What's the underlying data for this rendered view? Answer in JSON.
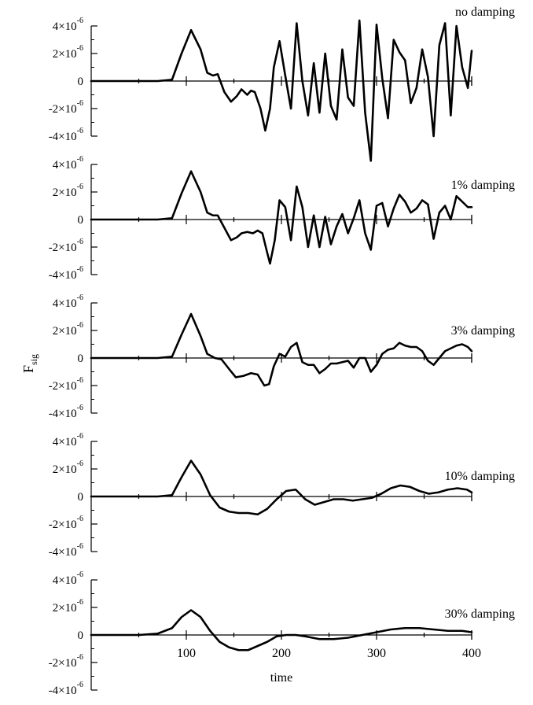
{
  "chart_data": {
    "type": "line",
    "xlabel": "time",
    "ylabel": "F",
    "ylabel_subscript": "sig",
    "xlim": [
      0,
      400
    ],
    "ylim": [
      -4e-06,
      4e-06
    ],
    "x_ticks": [
      "100",
      "200",
      "300",
      "400"
    ],
    "y_ticks": [
      {
        "mantissa": "4×10",
        "exponent": "-6"
      },
      {
        "mantissa": "2×10",
        "exponent": "-6"
      },
      {
        "mantissa": "0",
        "exponent": ""
      },
      {
        "mantissa": "-2×10",
        "exponent": "-6"
      },
      {
        "mantissa": "-4×10",
        "exponent": "-6"
      }
    ],
    "y_tick_values": [
      4e-06,
      2e-06,
      0,
      -2e-06,
      -4e-06
    ],
    "series": [
      {
        "name": "no damping",
        "x": [
          0,
          70,
          85,
          95,
          105,
          115,
          122,
          128,
          133,
          140,
          147,
          153,
          158,
          164,
          168,
          172,
          178,
          183,
          188,
          192,
          198,
          204,
          210,
          216,
          222,
          228,
          234,
          240,
          246,
          252,
          258,
          264,
          270,
          276,
          282,
          288,
          294,
          300,
          306,
          312,
          318,
          324,
          330,
          336,
          342,
          348,
          354,
          360,
          366,
          372,
          378,
          384,
          390,
          396,
          400
        ],
        "y": [
          0,
          0,
          1e-07,
          2e-06,
          3.7e-06,
          2.3e-06,
          6e-07,
          4e-07,
          5e-07,
          -8e-07,
          -1.5e-06,
          -1.1e-06,
          -6e-07,
          -1e-06,
          -7e-07,
          -8e-07,
          -2e-06,
          -3.6e-06,
          -2e-06,
          1e-06,
          2.9e-06,
          4e-07,
          -2e-06,
          4.2e-06,
          0,
          -2.5e-06,
          1.3e-06,
          -2.3e-06,
          2e-06,
          -1.8e-06,
          -2.8e-06,
          2.3e-06,
          -1.2e-06,
          -1.8e-06,
          4.4e-06,
          -2.3e-06,
          -5.8e-06,
          4.1e-06,
          2e-07,
          -2.7e-06,
          3e-06,
          2.1e-06,
          1.5e-06,
          -1.6e-06,
          -5e-07,
          2.3e-06,
          3e-07,
          -4e-06,
          2.6e-06,
          4.2e-06,
          -2.5e-06,
          4e-06,
          1e-06,
          -5e-07,
          2.2e-06
        ]
      },
      {
        "name": "1% damping",
        "x": [
          0,
          70,
          85,
          95,
          105,
          115,
          122,
          128,
          133,
          140,
          147,
          153,
          158,
          164,
          170,
          175,
          180,
          185,
          188,
          193,
          198,
          204,
          210,
          216,
          222,
          228,
          234,
          240,
          246,
          252,
          258,
          264,
          270,
          276,
          282,
          288,
          294,
          300,
          306,
          312,
          318,
          324,
          330,
          336,
          342,
          348,
          354,
          360,
          366,
          372,
          378,
          384,
          390,
          396,
          400
        ],
        "y": [
          0,
          0,
          1e-07,
          1.9e-06,
          3.5e-06,
          2e-06,
          5e-07,
          3e-07,
          3e-07,
          -6e-07,
          -1.5e-06,
          -1.3e-06,
          -1e-06,
          -9e-07,
          -1e-06,
          -8e-07,
          -1e-06,
          -2.4e-06,
          -3.2e-06,
          -1.5e-06,
          1.4e-06,
          9e-07,
          -1.5e-06,
          2.4e-06,
          9e-07,
          -2e-06,
          3e-07,
          -2e-06,
          2e-07,
          -1.8e-06,
          -5e-07,
          4e-07,
          -1e-06,
          1e-07,
          1.4e-06,
          -1e-06,
          -2.2e-06,
          1e-06,
          1.2e-06,
          -5e-07,
          8e-07,
          1.8e-06,
          1.3e-06,
          5e-07,
          8e-07,
          1.4e-06,
          1.1e-06,
          -1.4e-06,
          5e-07,
          1e-06,
          0,
          1.7e-06,
          1.3e-06,
          9e-07,
          9e-07
        ]
      },
      {
        "name": "3% damping",
        "x": [
          0,
          70,
          85,
          95,
          105,
          115,
          122,
          130,
          137,
          145,
          152,
          160,
          168,
          175,
          182,
          187,
          192,
          198,
          204,
          210,
          216,
          222,
          228,
          234,
          240,
          246,
          252,
          258,
          264,
          270,
          276,
          282,
          288,
          294,
          300,
          306,
          312,
          318,
          324,
          330,
          336,
          342,
          348,
          354,
          360,
          366,
          372,
          378,
          384,
          390,
          396,
          400
        ],
        "y": [
          0,
          0,
          1e-07,
          1.7e-06,
          3.2e-06,
          1.6e-06,
          3e-07,
          0,
          -1e-07,
          -8e-07,
          -1.4e-06,
          -1.3e-06,
          -1.1e-06,
          -1.2e-06,
          -2e-06,
          -1.9e-06,
          -6e-07,
          3e-07,
          1e-07,
          8e-07,
          1.1e-06,
          -3e-07,
          -5e-07,
          -5e-07,
          -1.1e-06,
          -8e-07,
          -4e-07,
          -4e-07,
          -3e-07,
          -2e-07,
          -7e-07,
          0,
          0,
          -1e-06,
          -5e-07,
          3e-07,
          6e-07,
          7e-07,
          1.1e-06,
          9e-07,
          8e-07,
          8e-07,
          5e-07,
          -2e-07,
          -5e-07,
          0,
          5e-07,
          7e-07,
          9e-07,
          1e-06,
          8e-07,
          5e-07
        ]
      },
      {
        "name": "10% damping",
        "x": [
          0,
          70,
          85,
          95,
          105,
          115,
          125,
          135,
          145,
          155,
          165,
          175,
          185,
          195,
          205,
          215,
          225,
          235,
          245,
          255,
          265,
          275,
          285,
          295,
          305,
          315,
          325,
          335,
          345,
          355,
          365,
          375,
          385,
          395,
          400
        ],
        "y": [
          0,
          0,
          1e-07,
          1.4e-06,
          2.6e-06,
          1.6e-06,
          1e-07,
          -8e-07,
          -1.1e-06,
          -1.2e-06,
          -1.2e-06,
          -1.3e-06,
          -9e-07,
          -2e-07,
          4e-07,
          5e-07,
          -2e-07,
          -6e-07,
          -4e-07,
          -2e-07,
          -2e-07,
          -3e-07,
          -2e-07,
          -1e-07,
          2e-07,
          6e-07,
          8e-07,
          7e-07,
          4e-07,
          2e-07,
          3e-07,
          5e-07,
          6e-07,
          5e-07,
          3e-07
        ]
      },
      {
        "name": "30% damping",
        "x": [
          0,
          50,
          70,
          85,
          95,
          105,
          115,
          125,
          135,
          145,
          155,
          165,
          175,
          185,
          195,
          205,
          215,
          225,
          240,
          255,
          270,
          285,
          300,
          315,
          330,
          345,
          360,
          375,
          390,
          400
        ],
        "y": [
          0,
          0,
          1e-07,
          5e-07,
          1.3e-06,
          1.8e-06,
          1.3e-06,
          3e-07,
          -5e-07,
          -9e-07,
          -1.1e-06,
          -1.1e-06,
          -8e-07,
          -5e-07,
          -1e-07,
          0,
          0,
          -1e-07,
          -3e-07,
          -3e-07,
          -2e-07,
          0,
          2e-07,
          4e-07,
          5e-07,
          5e-07,
          4e-07,
          3e-07,
          3e-07,
          2e-07
        ]
      }
    ]
  }
}
